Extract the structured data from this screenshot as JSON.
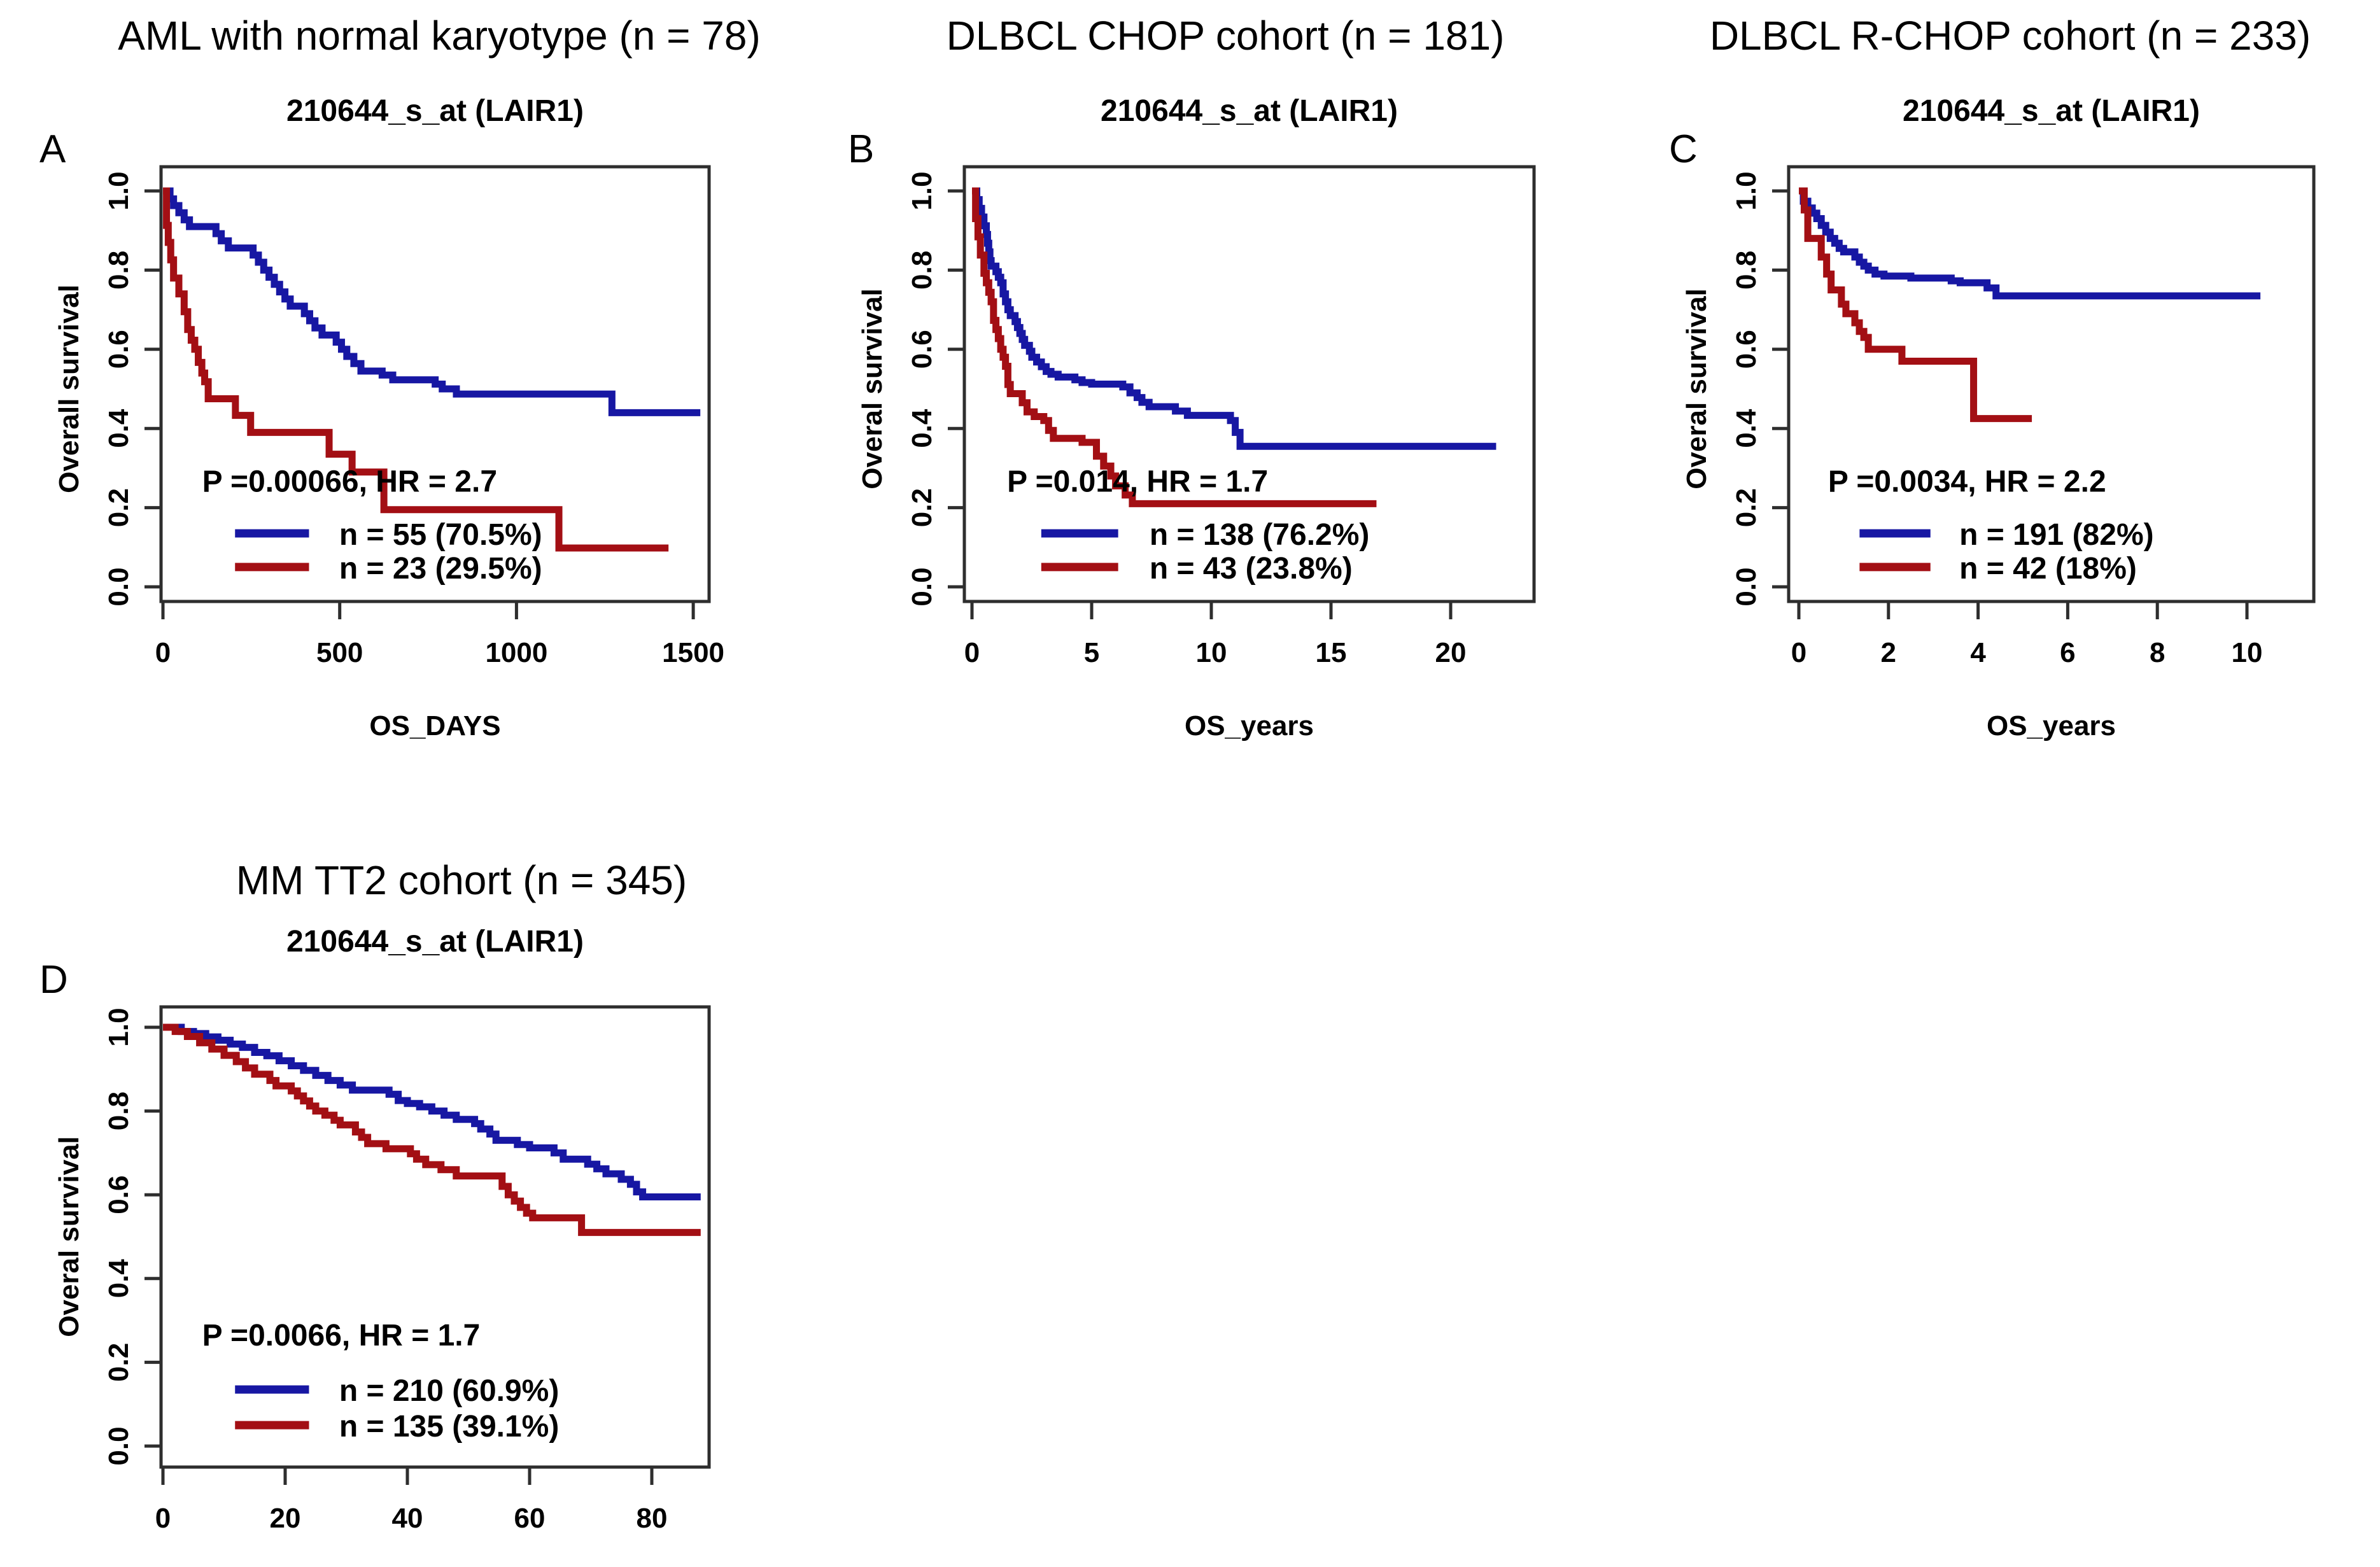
{
  "figure": {
    "background": "#ffffff",
    "palette": {
      "high": "#1717A3",
      "low": "#A30F14",
      "axis": "#2E2E2E",
      "text": "#000000"
    }
  },
  "chart_data": [
    {
      "type": "line",
      "subtype": "kaplan-meier-step",
      "panel_letter": "A",
      "title": "AML with normal karyotype (n = 78)",
      "subtitle": "210644_s_at (LAIR1)",
      "xlabel": "OS_DAYS",
      "ylabel": "Overall survival",
      "stats": "P =0.00066, HR = 2.7",
      "xticks": [
        0,
        500,
        1000,
        1500
      ],
      "yticks": [
        "0.0",
        "0.2",
        "0.4",
        "0.6",
        "0.8",
        "1.0"
      ],
      "ylim": [
        0,
        1
      ],
      "xlim": [
        0,
        1550
      ],
      "legend": [
        {
          "label": "n = 55 (70.5%)",
          "color": "#1717A3"
        },
        {
          "label": "n = 23 (29.5%)",
          "color": "#A30F14"
        }
      ],
      "series": [
        {
          "name": "high",
          "color": "#1717A3",
          "end": 1520,
          "points": [
            [
              20,
              0.98
            ],
            [
              30,
              0.963
            ],
            [
              45,
              0.945
            ],
            [
              60,
              0.927
            ],
            [
              75,
              0.91
            ],
            [
              150,
              0.892
            ],
            [
              165,
              0.874
            ],
            [
              185,
              0.856
            ],
            [
              255,
              0.838
            ],
            [
              270,
              0.82
            ],
            [
              285,
              0.8
            ],
            [
              300,
              0.782
            ],
            [
              315,
              0.764
            ],
            [
              330,
              0.745
            ],
            [
              345,
              0.727
            ],
            [
              360,
              0.709
            ],
            [
              400,
              0.69
            ],
            [
              415,
              0.672
            ],
            [
              430,
              0.654
            ],
            [
              450,
              0.636
            ],
            [
              490,
              0.618
            ],
            [
              505,
              0.6
            ],
            [
              520,
              0.582
            ],
            [
              540,
              0.564
            ],
            [
              560,
              0.545
            ],
            [
              620,
              0.535
            ],
            [
              650,
              0.523
            ],
            [
              770,
              0.512
            ],
            [
              790,
              0.5
            ],
            [
              830,
              0.487
            ],
            [
              1270,
              0.44
            ]
          ]
        },
        {
          "name": "low",
          "color": "#A30F14",
          "end": 1430,
          "points": [
            [
              10,
              0.913
            ],
            [
              15,
              0.87
            ],
            [
              22,
              0.826
            ],
            [
              30,
              0.78
            ],
            [
              45,
              0.74
            ],
            [
              60,
              0.695
            ],
            [
              70,
              0.65
            ],
            [
              80,
              0.623
            ],
            [
              90,
              0.6
            ],
            [
              100,
              0.567
            ],
            [
              110,
              0.54
            ],
            [
              118,
              0.518
            ],
            [
              128,
              0.475
            ],
            [
              205,
              0.433
            ],
            [
              248,
              0.39
            ],
            [
              470,
              0.335
            ],
            [
              535,
              0.29
            ],
            [
              625,
              0.195
            ],
            [
              1120,
              0.098
            ]
          ]
        }
      ]
    },
    {
      "type": "line",
      "subtype": "kaplan-meier-step",
      "panel_letter": "B",
      "title": "DLBCL CHOP cohort (n = 181)",
      "subtitle": "210644_s_at (LAIR1)",
      "xlabel": "OS_years",
      "ylabel": "Overal survival",
      "stats": "P =0.014, HR = 1.7",
      "xticks": [
        0,
        5,
        10,
        15,
        20
      ],
      "yticks": [
        "0.0",
        "0.2",
        "0.4",
        "0.6",
        "0.8",
        "1.0"
      ],
      "ylim": [
        0,
        1
      ],
      "xlim": [
        0,
        23.5
      ],
      "legend": [
        {
          "label": "n = 138 (76.2%)",
          "color": "#1717A3"
        },
        {
          "label": "n = 43 (23.8%)",
          "color": "#A30F14"
        }
      ],
      "series": [
        {
          "name": "high",
          "color": "#1717A3",
          "end": 21.9,
          "points": [
            [
              0.2,
              0.978
            ],
            [
              0.3,
              0.956
            ],
            [
              0.4,
              0.934
            ],
            [
              0.5,
              0.912
            ],
            [
              0.6,
              0.89
            ],
            [
              0.65,
              0.868
            ],
            [
              0.7,
              0.846
            ],
            [
              0.75,
              0.824
            ],
            [
              0.8,
              0.81
            ],
            [
              1.0,
              0.796
            ],
            [
              1.1,
              0.782
            ],
            [
              1.2,
              0.768
            ],
            [
              1.3,
              0.74
            ],
            [
              1.4,
              0.72
            ],
            [
              1.5,
              0.7
            ],
            [
              1.6,
              0.685
            ],
            [
              1.8,
              0.67
            ],
            [
              1.9,
              0.655
            ],
            [
              2.0,
              0.64
            ],
            [
              2.1,
              0.625
            ],
            [
              2.2,
              0.61
            ],
            [
              2.4,
              0.595
            ],
            [
              2.5,
              0.58
            ],
            [
              2.7,
              0.568
            ],
            [
              2.9,
              0.556
            ],
            [
              3.1,
              0.544
            ],
            [
              3.3,
              0.537
            ],
            [
              3.6,
              0.53
            ],
            [
              4.3,
              0.523
            ],
            [
              4.6,
              0.516
            ],
            [
              5.0,
              0.512
            ],
            [
              6.3,
              0.505
            ],
            [
              6.6,
              0.49
            ],
            [
              6.9,
              0.478
            ],
            [
              7.1,
              0.466
            ],
            [
              7.4,
              0.455
            ],
            [
              8.5,
              0.444
            ],
            [
              9.0,
              0.433
            ],
            [
              10.8,
              0.42
            ],
            [
              11.0,
              0.39
            ],
            [
              11.2,
              0.355
            ]
          ]
        },
        {
          "name": "low",
          "color": "#A30F14",
          "end": 16.9,
          "points": [
            [
              0.15,
              0.93
            ],
            [
              0.25,
              0.884
            ],
            [
              0.35,
              0.838
            ],
            [
              0.5,
              0.792
            ],
            [
              0.6,
              0.768
            ],
            [
              0.7,
              0.744
            ],
            [
              0.8,
              0.72
            ],
            [
              0.9,
              0.673
            ],
            [
              1.0,
              0.65
            ],
            [
              1.1,
              0.627
            ],
            [
              1.2,
              0.6
            ],
            [
              1.3,
              0.58
            ],
            [
              1.4,
              0.557
            ],
            [
              1.5,
              0.511
            ],
            [
              1.6,
              0.488
            ],
            [
              2.1,
              0.465
            ],
            [
              2.3,
              0.442
            ],
            [
              2.6,
              0.43
            ],
            [
              3.0,
              0.42
            ],
            [
              3.2,
              0.395
            ],
            [
              3.4,
              0.375
            ],
            [
              4.6,
              0.365
            ],
            [
              5.2,
              0.33
            ],
            [
              5.5,
              0.305
            ],
            [
              5.8,
              0.28
            ],
            [
              6.0,
              0.255
            ],
            [
              6.4,
              0.232
            ],
            [
              6.7,
              0.21
            ]
          ]
        }
      ]
    },
    {
      "type": "line",
      "subtype": "kaplan-meier-step",
      "panel_letter": "C",
      "title": "DLBCL R-CHOP cohort (n = 233)",
      "subtitle": "210644_s_at (LAIR1)",
      "xlabel": "OS_years",
      "ylabel": "Overal survival",
      "stats": "P =0.0034, HR = 2.2",
      "xticks": [
        0,
        2,
        4,
        6,
        8,
        10
      ],
      "yticks": [
        "0.0",
        "0.2",
        "0.4",
        "0.6",
        "0.8",
        "1.0"
      ],
      "ylim": [
        0,
        1
      ],
      "xlim": [
        0,
        11.5
      ],
      "legend": [
        {
          "label": "n = 191 (82%)",
          "color": "#1717A3"
        },
        {
          "label": "n = 42 (18%)",
          "color": "#A30F14"
        }
      ],
      "series": [
        {
          "name": "high",
          "color": "#1717A3",
          "end": 10.3,
          "points": [
            [
              0.1,
              0.974
            ],
            [
              0.2,
              0.957
            ],
            [
              0.3,
              0.944
            ],
            [
              0.4,
              0.93
            ],
            [
              0.5,
              0.913
            ],
            [
              0.6,
              0.896
            ],
            [
              0.7,
              0.88
            ],
            [
              0.8,
              0.868
            ],
            [
              0.9,
              0.855
            ],
            [
              1.0,
              0.846
            ],
            [
              1.25,
              0.833
            ],
            [
              1.35,
              0.82
            ],
            [
              1.45,
              0.81
            ],
            [
              1.55,
              0.8
            ],
            [
              1.7,
              0.79
            ],
            [
              1.9,
              0.785
            ],
            [
              2.5,
              0.78
            ],
            [
              3.4,
              0.773
            ],
            [
              3.6,
              0.768
            ],
            [
              4.2,
              0.755
            ],
            [
              4.4,
              0.735
            ]
          ]
        },
        {
          "name": "low",
          "color": "#A30F14",
          "end": 5.2,
          "points": [
            [
              0.12,
              0.952
            ],
            [
              0.2,
              0.88
            ],
            [
              0.5,
              0.833
            ],
            [
              0.62,
              0.79
            ],
            [
              0.72,
              0.75
            ],
            [
              0.95,
              0.714
            ],
            [
              1.05,
              0.69
            ],
            [
              1.25,
              0.667
            ],
            [
              1.35,
              0.645
            ],
            [
              1.45,
              0.63
            ],
            [
              1.55,
              0.6
            ],
            [
              2.3,
              0.57
            ],
            [
              3.9,
              0.425
            ]
          ]
        }
      ]
    },
    {
      "type": "line",
      "subtype": "kaplan-meier-step",
      "panel_letter": "D",
      "title": "MM TT2 cohort (n = 345)",
      "subtitle": "210644_s_at (LAIR1)",
      "xlabel": "",
      "ylabel": "Overal survival",
      "stats": "P =0.0066, HR = 1.7",
      "xticks": [
        0,
        20,
        40,
        60,
        80
      ],
      "yticks": [
        "0.0",
        "0.2",
        "0.4",
        "0.6",
        "0.8",
        "1.0"
      ],
      "ylim": [
        0,
        1
      ],
      "xlim": [
        0,
        89
      ],
      "legend": [
        {
          "label": "n = 210 (60.9%)",
          "color": "#1717A3"
        },
        {
          "label": "n = 135 (39.1%)",
          "color": "#A30F14"
        }
      ],
      "series": [
        {
          "name": "high",
          "color": "#1717A3",
          "end": 88,
          "points": [
            [
              3,
              0.99
            ],
            [
              5,
              0.985
            ],
            [
              7,
              0.977
            ],
            [
              9,
              0.969
            ],
            [
              11,
              0.96
            ],
            [
              13,
              0.952
            ],
            [
              15,
              0.94
            ],
            [
              17,
              0.932
            ],
            [
              19,
              0.92
            ],
            [
              21,
              0.908
            ],
            [
              23,
              0.897
            ],
            [
              25,
              0.885
            ],
            [
              27,
              0.873
            ],
            [
              29,
              0.862
            ],
            [
              31,
              0.85
            ],
            [
              37,
              0.84
            ],
            [
              38.5,
              0.825
            ],
            [
              40,
              0.818
            ],
            [
              42,
              0.81
            ],
            [
              44,
              0.8
            ],
            [
              46,
              0.79
            ],
            [
              48,
              0.78
            ],
            [
              51,
              0.77
            ],
            [
              52,
              0.757
            ],
            [
              53.5,
              0.745
            ],
            [
              54.5,
              0.73
            ],
            [
              58,
              0.72
            ],
            [
              60,
              0.712
            ],
            [
              64,
              0.7
            ],
            [
              65.5,
              0.685
            ],
            [
              69.5,
              0.673
            ],
            [
              71,
              0.662
            ],
            [
              72.5,
              0.65
            ],
            [
              75,
              0.637
            ],
            [
              76.5,
              0.625
            ],
            [
              77.5,
              0.607
            ],
            [
              78.5,
              0.595
            ]
          ]
        },
        {
          "name": "low",
          "color": "#A30F14",
          "end": 88,
          "points": [
            [
              2,
              0.99
            ],
            [
              4,
              0.978
            ],
            [
              6,
              0.963
            ],
            [
              8,
              0.948
            ],
            [
              10,
              0.933
            ],
            [
              12,
              0.918
            ],
            [
              13.5,
              0.903
            ],
            [
              15,
              0.888
            ],
            [
              17.5,
              0.873
            ],
            [
              18.5,
              0.86
            ],
            [
              21,
              0.848
            ],
            [
              22,
              0.836
            ],
            [
              23,
              0.824
            ],
            [
              24,
              0.812
            ],
            [
              25,
              0.8
            ],
            [
              26.5,
              0.79
            ],
            [
              28,
              0.778
            ],
            [
              29,
              0.767
            ],
            [
              31.5,
              0.75
            ],
            [
              32.5,
              0.737
            ],
            [
              33.5,
              0.722
            ],
            [
              36.5,
              0.71
            ],
            [
              40.5,
              0.698
            ],
            [
              41.5,
              0.685
            ],
            [
              43,
              0.672
            ],
            [
              45.5,
              0.66
            ],
            [
              48,
              0.645
            ],
            [
              55.5,
              0.62
            ],
            [
              56.5,
              0.6
            ],
            [
              57.5,
              0.585
            ],
            [
              58.5,
              0.57
            ],
            [
              59.5,
              0.556
            ],
            [
              60.5,
              0.545
            ],
            [
              68.5,
              0.51
            ]
          ]
        }
      ]
    }
  ]
}
